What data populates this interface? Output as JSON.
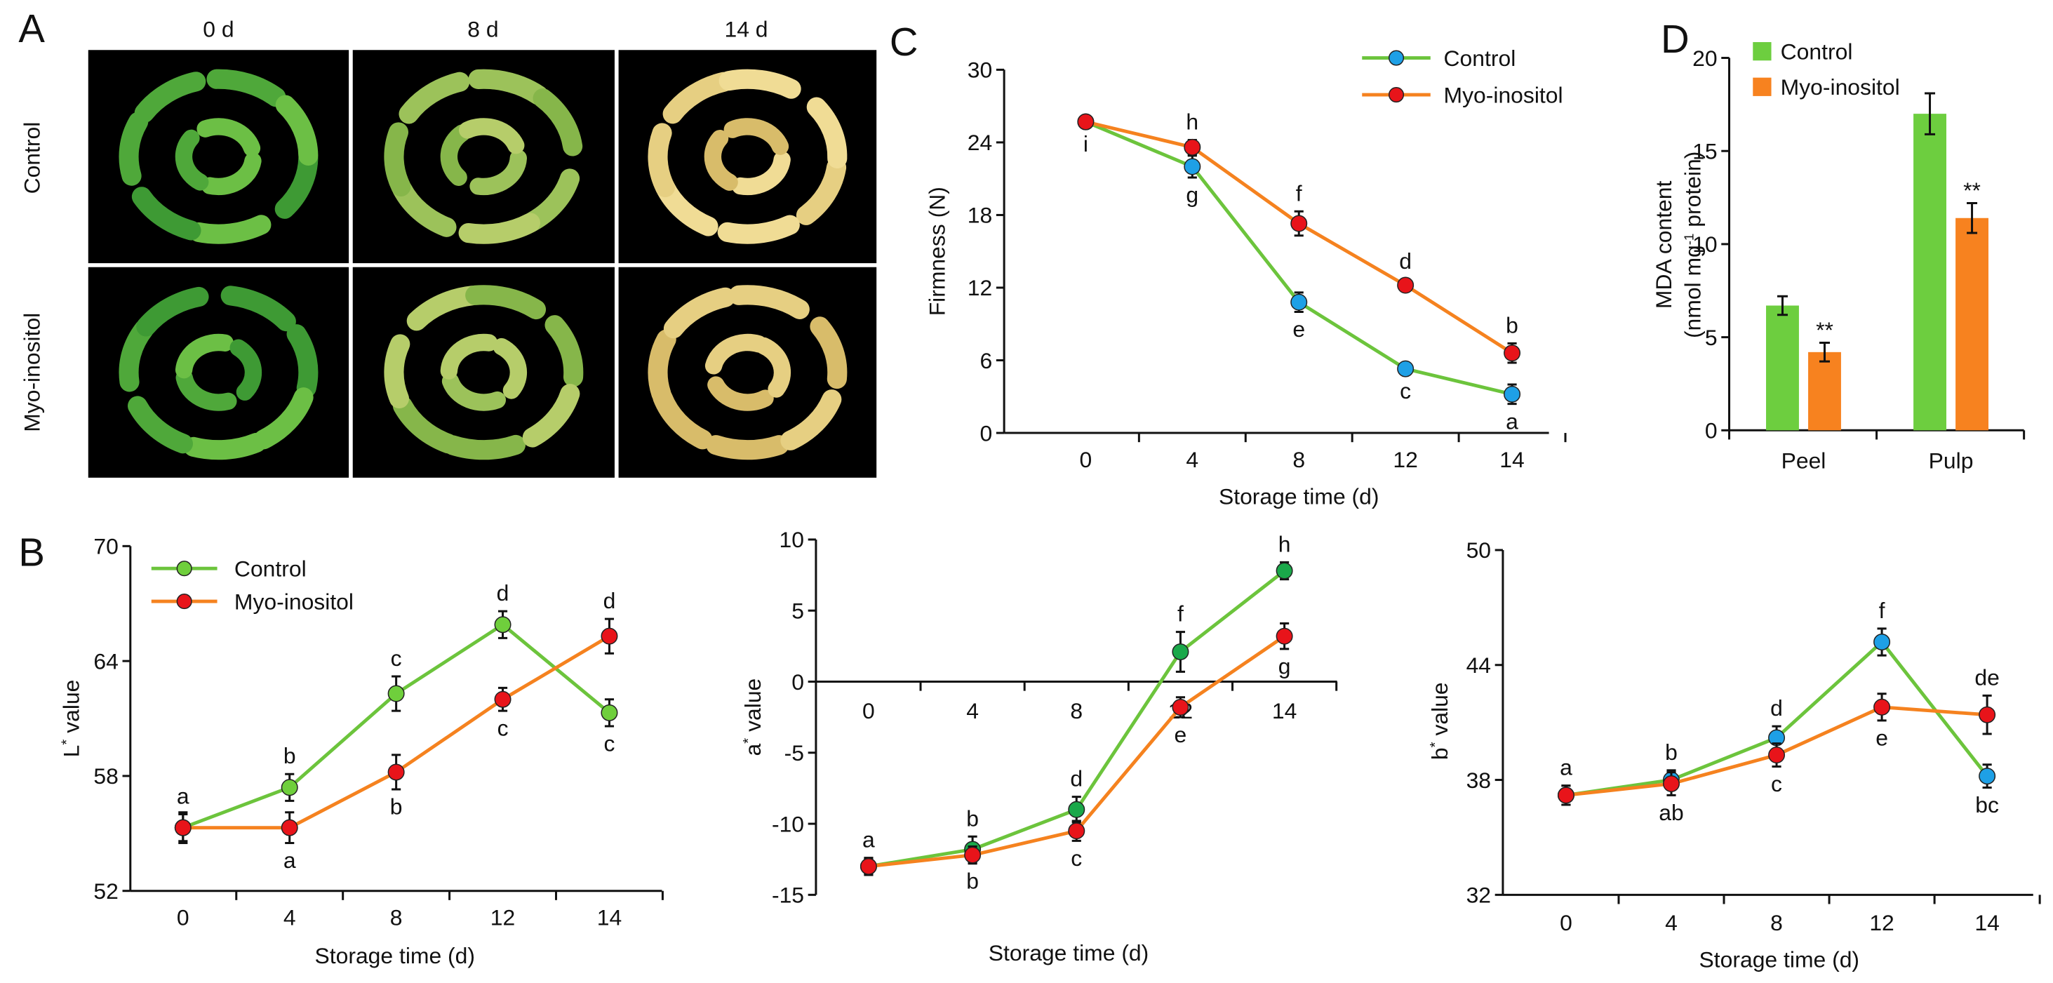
{
  "panels": {
    "A": "A",
    "B": "B",
    "C": "C",
    "D": "D"
  },
  "photo_grid": {
    "columns": [
      "0 d",
      "8 d",
      "14 d"
    ],
    "rows": [
      "Control",
      "Myo-inositol"
    ]
  },
  "legend": {
    "control": "Control",
    "myo": "Myo-inositol"
  },
  "colors": {
    "control_line": "#6cc43c",
    "myo_line": "#f5821f",
    "myo_marker": "#e8141a",
    "control_marker_cyan": "#1ea0e6",
    "control_marker_green": "#6fcf3c",
    "control_marker_dark": "#1aa84a",
    "bar_control": "#6dce3f",
    "bar_myo": "#f7821f"
  },
  "chart_data": [
    {
      "id": "firmness",
      "panel": "C",
      "type": "line",
      "ylabel": "Firmness (N)",
      "xlabel": "Storage time (d)",
      "x": [
        "0",
        "4",
        "8",
        "12",
        "14"
      ],
      "ylim": [
        0,
        30
      ],
      "yticks": [
        0,
        6,
        12,
        18,
        24,
        30
      ],
      "series": [
        {
          "name": "Control",
          "values": [
            25.7,
            22.0,
            10.8,
            5.3,
            3.2
          ],
          "errors": [
            0.4,
            0.9,
            0.8,
            0.4,
            0.8
          ],
          "letters": [
            "i",
            "g",
            "e",
            "c",
            "a"
          ],
          "letter_pos": [
            "below",
            "below",
            "below",
            "below",
            "below"
          ]
        },
        {
          "name": "Myo-inositol",
          "values": [
            25.7,
            23.6,
            17.3,
            12.2,
            6.6
          ],
          "errors": [
            0.4,
            0.6,
            1.0,
            0.5,
            0.8
          ],
          "letters": [
            "",
            "h",
            "f",
            "d",
            "b"
          ],
          "letter_pos": [
            "above",
            "above",
            "above",
            "above",
            "above"
          ]
        }
      ]
    },
    {
      "id": "mda",
      "panel": "D",
      "type": "bar",
      "ylabel": "MDA content",
      "ylabel2_pre": "(nmol mg",
      "ylabel2_sup": "-1",
      "ylabel2_post": " protein)",
      "categories": [
        "Peel",
        "Pulp"
      ],
      "ylim": [
        0,
        20
      ],
      "yticks": [
        0,
        5,
        10,
        15,
        20
      ],
      "series": [
        {
          "name": "Control",
          "values": [
            6.7,
            17.0
          ],
          "errors": [
            0.5,
            1.1
          ],
          "annotations": [
            "",
            ""
          ]
        },
        {
          "name": "Myo-inositol",
          "values": [
            4.2,
            11.4
          ],
          "errors": [
            0.5,
            0.8
          ],
          "annotations": [
            "**",
            "**"
          ]
        }
      ]
    },
    {
      "id": "lstar",
      "panel": "B",
      "type": "line",
      "ylabel_main": "L",
      "ylabel_sup": "*",
      "ylabel_post": " value",
      "xlabel": "Storage time (d)",
      "x": [
        "0",
        "4",
        "8",
        "12",
        "14"
      ],
      "ylim": [
        52,
        70
      ],
      "yticks": [
        52,
        58,
        64,
        70
      ],
      "series": [
        {
          "name": "Control",
          "values": [
            55.3,
            57.4,
            62.3,
            65.9,
            61.3
          ],
          "errors": [
            0.7,
            0.7,
            0.9,
            0.7,
            0.7
          ],
          "letters": [
            "a",
            "b",
            "c",
            "d",
            "c"
          ],
          "letter_pos": [
            "above",
            "above",
            "above",
            "above",
            "below"
          ]
        },
        {
          "name": "Myo-inositol",
          "values": [
            55.3,
            55.3,
            58.2,
            62.0,
            65.3
          ],
          "errors": [
            0.8,
            0.8,
            0.9,
            0.6,
            0.9
          ],
          "letters": [
            "",
            "a",
            "b",
            "c",
            "d"
          ],
          "letter_pos": [
            "below",
            "below",
            "below",
            "below",
            "above"
          ]
        }
      ]
    },
    {
      "id": "astar",
      "panel": "B",
      "type": "line",
      "ylabel_main": "a",
      "ylabel_sup": "*",
      "ylabel_post": " value",
      "xlabel": "Storage time (d)",
      "x": [
        "0",
        "4",
        "8",
        "12",
        "14"
      ],
      "ylim": [
        -15,
        10
      ],
      "yticks": [
        -15,
        -10,
        -5,
        0,
        5,
        10
      ],
      "series": [
        {
          "name": "Control",
          "values": [
            -13.0,
            -11.8,
            -9.0,
            2.1,
            7.8
          ],
          "errors": [
            0.6,
            0.9,
            0.9,
            1.4,
            0.6
          ],
          "letters": [
            "a",
            "b",
            "d",
            "f",
            "h"
          ],
          "letter_pos": [
            "above",
            "above",
            "above",
            "above",
            "above"
          ]
        },
        {
          "name": "Myo-inositol",
          "values": [
            -13.0,
            -12.2,
            -10.5,
            -1.8,
            3.2
          ],
          "errors": [
            0.5,
            0.6,
            0.7,
            0.7,
            0.9
          ],
          "letters": [
            "",
            "b",
            "c",
            "e",
            "g"
          ],
          "letter_pos": [
            "below",
            "below",
            "below",
            "below",
            "below"
          ]
        }
      ]
    },
    {
      "id": "bstar",
      "panel": "B",
      "type": "line",
      "ylabel_main": "b",
      "ylabel_sup": "*",
      "ylabel_post": " value",
      "xlabel": "Storage time (d)",
      "x": [
        "0",
        "4",
        "8",
        "12",
        "14"
      ],
      "ylim": [
        32,
        50
      ],
      "yticks": [
        32,
        38,
        44,
        50
      ],
      "series": [
        {
          "name": "Control",
          "values": [
            37.2,
            38.0,
            40.2,
            45.2,
            38.2
          ],
          "errors": [
            0.5,
            0.5,
            0.6,
            0.7,
            0.6
          ],
          "letters": [
            "a",
            "b",
            "d",
            "f",
            "bc"
          ],
          "letter_pos": [
            "above",
            "above",
            "above",
            "above",
            "below"
          ]
        },
        {
          "name": "Myo-inositol",
          "values": [
            37.2,
            37.8,
            39.3,
            41.8,
            41.4
          ],
          "errors": [
            0.5,
            0.6,
            0.6,
            0.7,
            1.0
          ],
          "letters": [
            "",
            "ab",
            "c",
            "e",
            "de"
          ],
          "letter_pos": [
            "below",
            "below",
            "below",
            "below",
            "above"
          ]
        }
      ]
    }
  ]
}
